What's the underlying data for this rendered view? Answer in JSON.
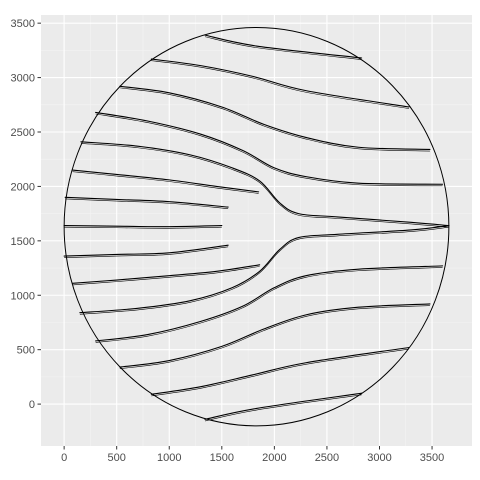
{
  "colors": {
    "panel_background": "#ebebeb",
    "grid_major": "#ffffff",
    "grid_minor": "#f4f4f4",
    "line": "#000000",
    "tick_label": "#4d4d4d",
    "tick_mark": "#333333"
  },
  "chart_data": {
    "type": "line",
    "title": "",
    "xlabel": "",
    "ylabel": "",
    "xlim": [
      -220,
      3880
    ],
    "ylim": [
      -385,
      3575
    ],
    "grid": true,
    "x_ticks": [
      0,
      500,
      1000,
      1500,
      2000,
      2500,
      3000,
      3500
    ],
    "y_ticks": [
      0,
      500,
      1000,
      1500,
      2000,
      2500,
      3000,
      3500
    ],
    "x_tick_labels": [
      "0",
      "500",
      "1000",
      "1500",
      "2000",
      "2500",
      "3000",
      "3500"
    ],
    "y_tick_labels": [
      "0",
      "500",
      "1000",
      "1500",
      "2000",
      "2500",
      "3000",
      "3500"
    ],
    "boundary": {
      "shape": "circle",
      "center": [
        1830,
        1630
      ],
      "radius": 1830
    },
    "series": [
      {
        "points": [
          [
            1340,
            3390
          ],
          [
            1830,
            3290
          ],
          [
            2830,
            3180
          ]
        ]
      },
      {
        "points": [
          [
            830,
            3170
          ],
          [
            1300,
            3110
          ],
          [
            1800,
            3010
          ],
          [
            2300,
            2880
          ],
          [
            3280,
            2730
          ]
        ]
      },
      {
        "points": [
          [
            530,
            2920
          ],
          [
            1000,
            2860
          ],
          [
            1500,
            2730
          ],
          [
            1900,
            2570
          ],
          [
            2300,
            2450
          ],
          [
            2800,
            2360
          ],
          [
            3480,
            2340
          ]
        ]
      },
      {
        "points": [
          [
            300,
            2680
          ],
          [
            800,
            2600
          ],
          [
            1300,
            2480
          ],
          [
            1700,
            2330
          ],
          [
            2000,
            2170
          ],
          [
            2300,
            2090
          ],
          [
            2800,
            2030
          ],
          [
            3600,
            2020
          ]
        ]
      },
      {
        "points": [
          [
            160,
            2410
          ],
          [
            700,
            2370
          ],
          [
            1200,
            2290
          ],
          [
            1600,
            2170
          ],
          [
            1860,
            2050
          ],
          [
            2050,
            1850
          ],
          [
            2230,
            1750
          ],
          [
            2600,
            1720
          ],
          [
            3300,
            1670
          ],
          [
            3660,
            1640
          ]
        ]
      },
      {
        "points": [
          [
            80,
            2150
          ],
          [
            500,
            2110
          ],
          [
            1000,
            2060
          ],
          [
            1450,
            2000
          ],
          [
            1850,
            1950
          ]
        ]
      },
      {
        "points": [
          [
            10,
            1900
          ],
          [
            500,
            1880
          ],
          [
            1000,
            1860
          ],
          [
            1560,
            1810
          ]
        ]
      },
      {
        "points": [
          [
            0,
            1640
          ],
          [
            500,
            1635
          ],
          [
            1000,
            1630
          ],
          [
            1500,
            1640
          ]
        ]
      },
      {
        "points": [
          [
            0,
            1360
          ],
          [
            500,
            1375
          ],
          [
            1000,
            1390
          ],
          [
            1560,
            1460
          ]
        ]
      },
      {
        "points": [
          [
            80,
            1110
          ],
          [
            500,
            1140
          ],
          [
            1000,
            1180
          ],
          [
            1450,
            1220
          ],
          [
            1860,
            1280
          ]
        ]
      },
      {
        "points": [
          [
            150,
            840
          ],
          [
            700,
            880
          ],
          [
            1200,
            950
          ],
          [
            1600,
            1070
          ],
          [
            1860,
            1220
          ],
          [
            2050,
            1420
          ],
          [
            2230,
            1530
          ],
          [
            2600,
            1560
          ],
          [
            3300,
            1600
          ],
          [
            3660,
            1640
          ]
        ]
      },
      {
        "points": [
          [
            300,
            580
          ],
          [
            800,
            640
          ],
          [
            1300,
            760
          ],
          [
            1700,
            900
          ],
          [
            2000,
            1070
          ],
          [
            2300,
            1180
          ],
          [
            2800,
            1240
          ],
          [
            3600,
            1270
          ]
        ]
      },
      {
        "points": [
          [
            530,
            340
          ],
          [
            1000,
            400
          ],
          [
            1500,
            530
          ],
          [
            1900,
            690
          ],
          [
            2300,
            820
          ],
          [
            2800,
            890
          ],
          [
            3480,
            920
          ]
        ]
      },
      {
        "points": [
          [
            830,
            90
          ],
          [
            1300,
            160
          ],
          [
            1800,
            270
          ],
          [
            2300,
            380
          ],
          [
            3280,
            520
          ]
        ]
      },
      {
        "points": [
          [
            1340,
            -140
          ],
          [
            1830,
            -40
          ],
          [
            2830,
            100
          ]
        ]
      }
    ]
  }
}
